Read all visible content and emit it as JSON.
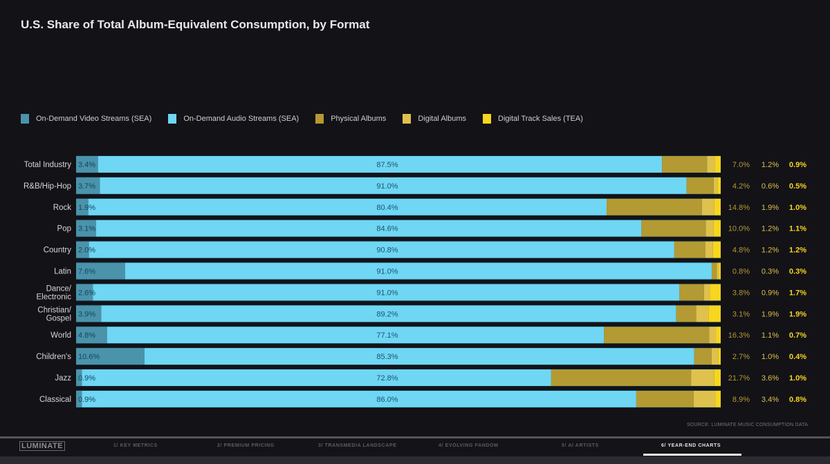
{
  "title": "U.S. Share of Total Album-Equivalent Consumption, by Format",
  "legend": [
    {
      "label": "On-Demand Video Streams (SEA)",
      "color": "#4a93ab"
    },
    {
      "label": "On-Demand Audio Streams (SEA)",
      "color": "#6fd6f3"
    },
    {
      "label": "Physical Albums",
      "color": "#b39a32"
    },
    {
      "label": "Digital Albums",
      "color": "#dfc14d"
    },
    {
      "label": "Digital Track Sales (TEA)",
      "color": "#f7d61f"
    }
  ],
  "source": "SOURCE: LUMINATE MUSIC CONSUMPTION DATA",
  "footer": {
    "logo": "LUMINATE",
    "nav": [
      {
        "label": "1/ KEY METRICS",
        "active": false
      },
      {
        "label": "2/ PREMIUM PRICING",
        "active": false
      },
      {
        "label": "3/ TRANSMEDIA LANDSCAPE",
        "active": false
      },
      {
        "label": "4/ EVOLVING FANDOM",
        "active": false
      },
      {
        "label": "5/ AI ARTISTS",
        "active": false
      },
      {
        "label": "6/ YEAR-END CHARTS",
        "active": true
      }
    ]
  },
  "chart_data": {
    "type": "bar",
    "orientation": "horizontal",
    "stacked": true,
    "title": "U.S. Share of Total Album-Equivalent Consumption, by Format",
    "xlabel": "",
    "ylabel": "",
    "xlim": [
      0,
      100
    ],
    "grid": false,
    "legend_position": "top-left",
    "categories": [
      "Total Industry",
      "R&B/Hip-Hop",
      "Rock",
      "Pop",
      "Country",
      "Latin",
      "Dance/\nElectronic",
      "Christian/\nGospel",
      "World",
      "Children's",
      "Jazz",
      "Classical"
    ],
    "series": [
      {
        "name": "On-Demand Video Streams (SEA)",
        "color": "#4a93ab",
        "values": [
          3.4,
          3.7,
          1.9,
          3.1,
          2.0,
          7.6,
          2.6,
          3.9,
          4.8,
          10.6,
          0.9,
          0.9
        ]
      },
      {
        "name": "On-Demand Audio Streams (SEA)",
        "color": "#6fd6f3",
        "values": [
          87.5,
          91.0,
          80.4,
          84.6,
          90.8,
          91.0,
          91.0,
          89.2,
          77.1,
          85.3,
          72.8,
          86.0
        ]
      },
      {
        "name": "Physical Albums",
        "color": "#b39a32",
        "values": [
          7.0,
          4.2,
          14.8,
          10.0,
          4.8,
          0.8,
          3.8,
          3.1,
          16.3,
          2.7,
          21.7,
          8.9
        ]
      },
      {
        "name": "Digital Albums",
        "color": "#dfc14d",
        "values": [
          1.2,
          0.6,
          1.9,
          1.2,
          1.2,
          0.3,
          0.9,
          1.9,
          1.1,
          1.0,
          3.6,
          3.4
        ]
      },
      {
        "name": "Digital Track Sales (TEA)",
        "color": "#f7d61f",
        "values": [
          0.9,
          0.5,
          1.0,
          1.1,
          1.2,
          0.3,
          1.7,
          1.9,
          0.7,
          0.4,
          1.0,
          0.8
        ]
      }
    ],
    "side_label_colors": [
      "#b39a32",
      "#dfc14d",
      "#f7d61f"
    ]
  }
}
